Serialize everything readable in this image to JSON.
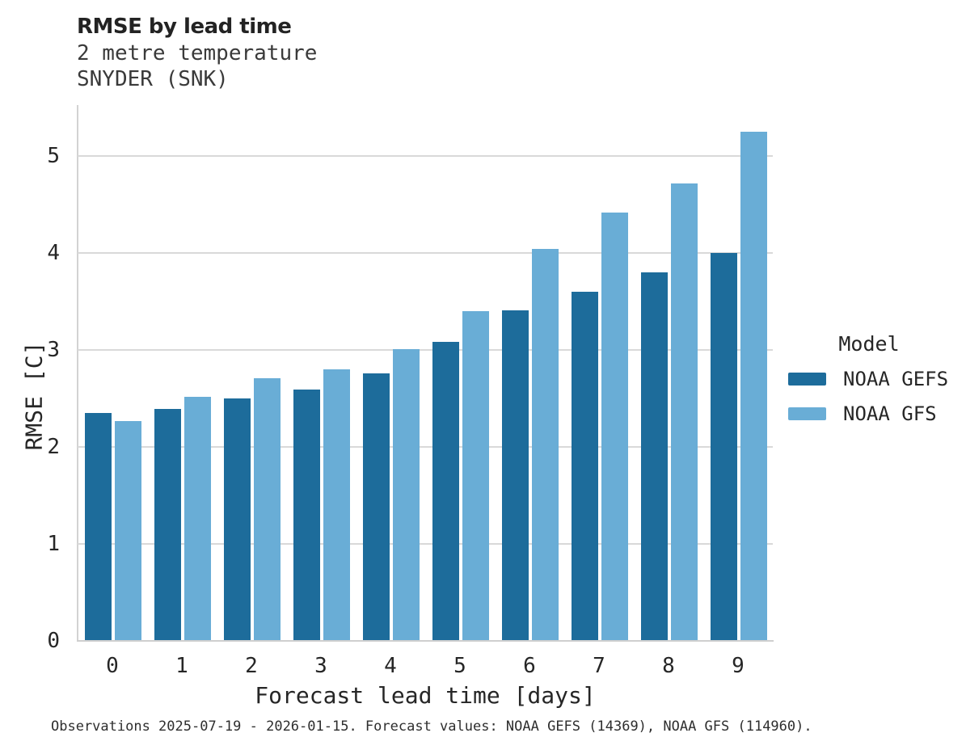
{
  "header": {
    "title": "RMSE by lead time",
    "subtitle_line1": "2 metre temperature",
    "subtitle_line2": "SNYDER (SNK)"
  },
  "chart_data": {
    "type": "bar",
    "title": "RMSE by lead time",
    "subtitle": [
      "2 metre temperature",
      "SNYDER (SNK)"
    ],
    "categories": [
      "0",
      "1",
      "2",
      "3",
      "4",
      "5",
      "6",
      "7",
      "8",
      "9"
    ],
    "series": [
      {
        "name": "NOAA GEFS",
        "color": "#1d6c9b",
        "values": [
          2.35,
          2.39,
          2.5,
          2.59,
          2.76,
          3.08,
          3.41,
          3.6,
          3.8,
          4.0
        ]
      },
      {
        "name": "NOAA GFS",
        "color": "#69add6",
        "values": [
          2.27,
          2.52,
          2.71,
          2.8,
          3.01,
          3.4,
          4.04,
          4.42,
          4.72,
          5.25
        ]
      }
    ],
    "xlabel": "Forecast lead time [days]",
    "ylabel": "RMSE [C]",
    "ylim": [
      0,
      5.525
    ],
    "yticks": [
      0,
      1,
      2,
      3,
      4,
      5
    ],
    "grid": true,
    "legend_title": "Model",
    "legend_position": "right"
  },
  "caption": "Observations 2025-07-19 - 2026-01-15. Forecast values: NOAA GEFS (14369), NOAA GFS (114960)."
}
